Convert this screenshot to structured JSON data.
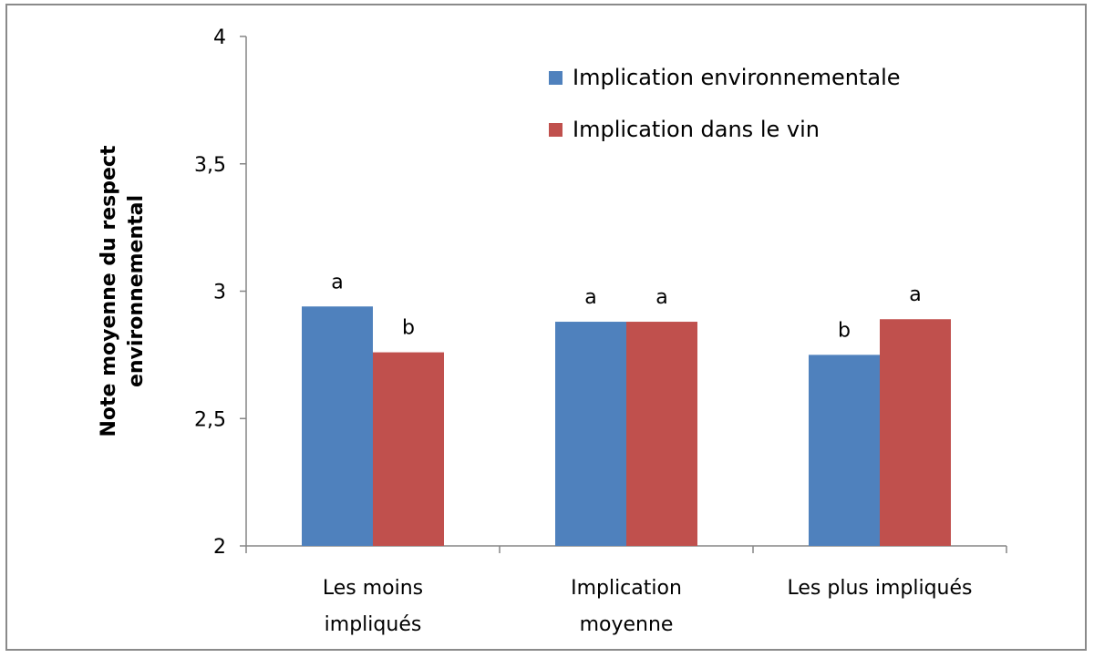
{
  "chart_data": {
    "type": "bar",
    "title": "",
    "xlabel": "",
    "ylabel_lines": [
      "Note moyenne du respect",
      "environnemental"
    ],
    "ylim": [
      2,
      4
    ],
    "yticks": [
      "2",
      "2,5",
      "3",
      "3,5",
      "4"
    ],
    "ytick_values": [
      2,
      2.5,
      3,
      3.5,
      4
    ],
    "grid": false,
    "legend_position": "top-right",
    "categories": [
      {
        "lines": [
          "Les moins",
          "impliqués"
        ]
      },
      {
        "lines": [
          "Implication",
          "moyenne"
        ]
      },
      {
        "lines": [
          "Les plus impliqués"
        ]
      }
    ],
    "series": [
      {
        "name": "Implication environnementale",
        "color": "#4f81bd",
        "values": [
          2.94,
          2.88,
          2.75
        ],
        "labels": [
          "a",
          "a",
          "b"
        ]
      },
      {
        "name": "Implication dans le vin",
        "color": "#c0504d",
        "values": [
          2.76,
          2.88,
          2.89
        ],
        "labels": [
          "b",
          "a",
          "a"
        ]
      }
    ]
  }
}
